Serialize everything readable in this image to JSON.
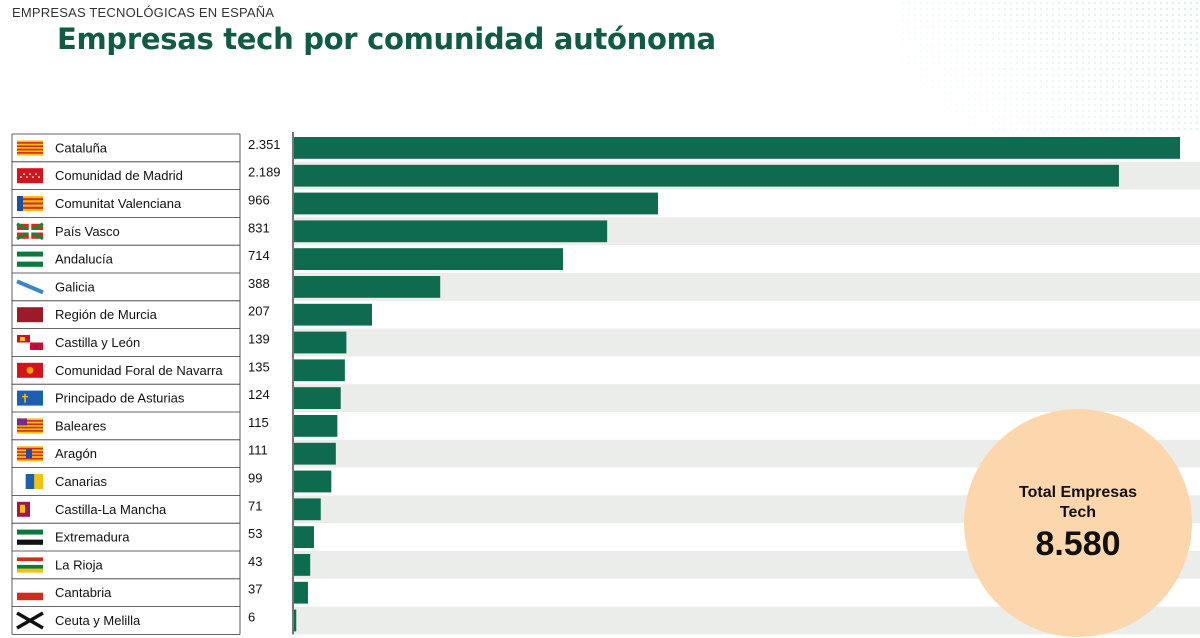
{
  "header": {
    "kicker": "EMPRESAS TECNOLÓGICAS EN ESPAÑA",
    "title": "Empresas tech por comunidad autónoma"
  },
  "total": {
    "label": "Total Empresas Tech",
    "value": "8.580"
  },
  "colors": {
    "bar": "#0f6b50",
    "title": "#0f5b45",
    "row_stripe": "#eaede9",
    "circle": "#fcd7ad"
  },
  "chart_data": {
    "type": "bar",
    "orientation": "horizontal",
    "title": "Empresas tech por comunidad autónoma",
    "xlabel": "",
    "ylabel": "",
    "xlim": [
      0,
      2351
    ],
    "grid": false,
    "legend": "none",
    "categories": [
      "Cataluña",
      "Comunidad de Madrid",
      "Comunitat Valenciana",
      "País Vasco",
      "Andalucía",
      "Galicia",
      "Región de Murcia",
      "Castilla y León",
      "Comunidad Foral de Navarra",
      "Principado de Asturias",
      "Baleares",
      "Aragón",
      "Canarias",
      "Castilla-La Mancha",
      "Extremadura",
      "La Rioja",
      "Cantabria",
      "Ceuta y Melilla"
    ],
    "values": [
      2351,
      2189,
      966,
      831,
      714,
      388,
      207,
      139,
      135,
      124,
      115,
      111,
      99,
      71,
      53,
      43,
      37,
      6
    ],
    "value_labels": [
      "2.351",
      "2.189",
      "966",
      "831",
      "714",
      "388",
      "207",
      "139",
      "135",
      "124",
      "115",
      "111",
      "99",
      "71",
      "53",
      "43",
      "37",
      "6"
    ],
    "flag_icons": [
      "cataluna-flag-icon",
      "madrid-flag-icon",
      "valencia-flag-icon",
      "pais-vasco-flag-icon",
      "andalucia-flag-icon",
      "galicia-flag-icon",
      "murcia-flag-icon",
      "castilla-leon-flag-icon",
      "navarra-flag-icon",
      "asturias-flag-icon",
      "baleares-flag-icon",
      "aragon-flag-icon",
      "canarias-flag-icon",
      "castilla-la-mancha-flag-icon",
      "extremadura-flag-icon",
      "la-rioja-flag-icon",
      "cantabria-flag-icon",
      "ceuta-melilla-flag-icon"
    ]
  }
}
